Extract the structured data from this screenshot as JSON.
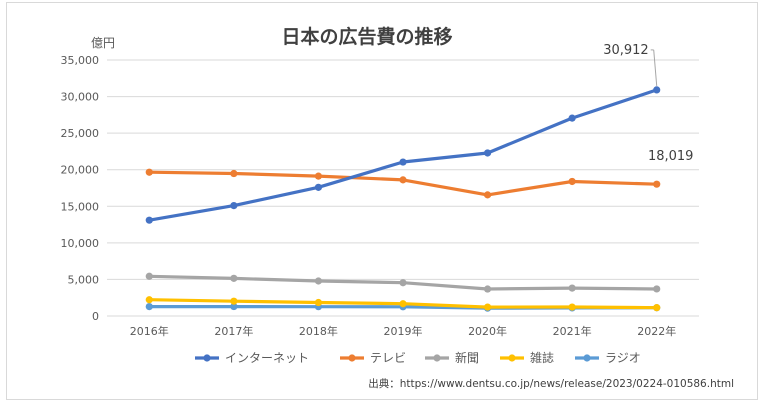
{
  "chart_data": {
    "type": "line",
    "title": "日本の広告費の推移",
    "unit_label": "億円",
    "categories": [
      "2016年",
      "2017年",
      "2018年",
      "2019年",
      "2020年",
      "2021年",
      "2022年"
    ],
    "ylim": [
      0,
      35000
    ],
    "yticks": [
      "0",
      "5,000",
      "10,000",
      "15,000",
      "20,000",
      "25,000",
      "30,000",
      "35,000"
    ],
    "grid": true,
    "legend_position": "bottom",
    "series": [
      {
        "name": "インターネット",
        "color": "#4472c4",
        "values": [
          13100,
          15094,
          17589,
          21048,
          22290,
          27052,
          30912
        ]
      },
      {
        "name": "テレビ",
        "color": "#ed7d31",
        "values": [
          19657,
          19478,
          19123,
          18612,
          16559,
          18393,
          18019
        ]
      },
      {
        "name": "新聞",
        "color": "#a5a5a5",
        "values": [
          5431,
          5147,
          4784,
          4547,
          3688,
          3815,
          3697
        ]
      },
      {
        "name": "雑誌",
        "color": "#ffc000",
        "values": [
          2223,
          2023,
          1841,
          1675,
          1223,
          1224,
          1140
        ]
      },
      {
        "name": "ラジオ",
        "color": "#5b9bd5",
        "values": [
          1285,
          1290,
          1278,
          1260,
          1066,
          1106,
          1129
        ]
      }
    ],
    "annotations": [
      "30,912",
      "18,019"
    ],
    "source": "出典：https://www.dentsu.co.jp/news/release/2023/0224-010586.html"
  }
}
